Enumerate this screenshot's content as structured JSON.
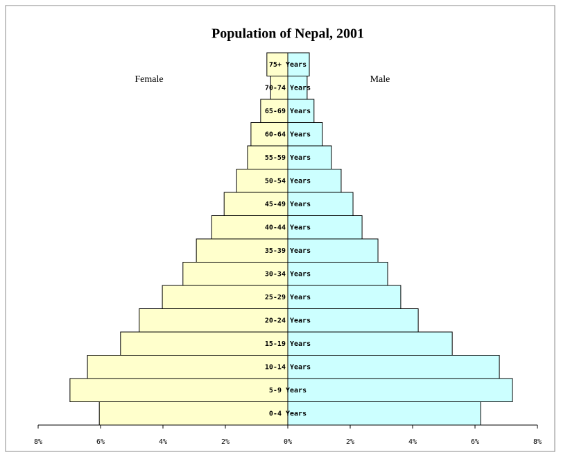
{
  "chart_data": {
    "type": "pyramid",
    "title": "Population of Nepal, 2001",
    "annotations": [
      "Female",
      "Male"
    ],
    "categories": [
      "0-4 Years",
      "5-9 Years",
      "10-14 Years",
      "15-19 Years",
      "20-24 Years",
      "25-29 Years",
      "30-34 Years",
      "35-39 Years",
      "40-44 Years",
      "45-49 Years",
      "50-54 Years",
      "55-59 Years",
      "60-64 Years",
      "65-69 Years",
      "70-74 Years",
      "75+ Years"
    ],
    "series": [
      {
        "name": "Female",
        "color": "#ffffcc",
        "values": [
          -6.04,
          -6.98,
          -6.42,
          -5.36,
          -4.76,
          -4.02,
          -3.36,
          -2.93,
          -2.44,
          -2.04,
          -1.64,
          -1.29,
          -1.18,
          -0.87,
          -0.55,
          -0.67
        ]
      },
      {
        "name": "Male",
        "color": "#ccffff",
        "values": [
          6.18,
          7.2,
          6.78,
          5.27,
          4.18,
          3.62,
          3.2,
          2.89,
          2.38,
          2.09,
          1.71,
          1.4,
          1.11,
          0.84,
          0.62,
          0.69
        ]
      }
    ],
    "xlim": [
      -8,
      8
    ],
    "xticks": [
      {
        "value": -8,
        "label": "8%"
      },
      {
        "value": -6,
        "label": "6%"
      },
      {
        "value": -4,
        "label": "4%"
      },
      {
        "value": -2,
        "label": "2%"
      },
      {
        "value": 0,
        "label": "0%"
      },
      {
        "value": 2,
        "label": "2%"
      },
      {
        "value": 4,
        "label": "4%"
      },
      {
        "value": 6,
        "label": "6%"
      },
      {
        "value": 8,
        "label": "8%"
      }
    ]
  }
}
